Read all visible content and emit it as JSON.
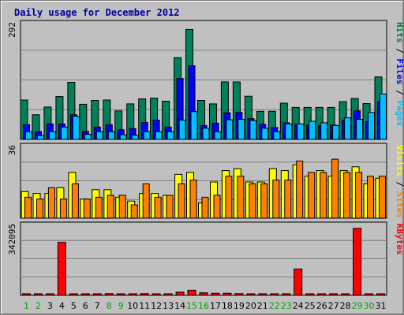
{
  "chart_data": {
    "type": "bar",
    "title": "Daily usage for December 2012",
    "days": [
      "1",
      "2",
      "3",
      "4",
      "5",
      "6",
      "7",
      "8",
      "9",
      "10",
      "11",
      "12",
      "13",
      "14",
      "15",
      "16",
      "17",
      "18",
      "19",
      "20",
      "21",
      "22",
      "23",
      "24",
      "25",
      "26",
      "27",
      "28",
      "29",
      "30",
      "31"
    ],
    "weekend_days": [
      1,
      2,
      8,
      9,
      15,
      16,
      22,
      23,
      29,
      30
    ],
    "panels": [
      {
        "id": "hits",
        "max_label": "292",
        "max": 292,
        "axis_labels": [
          {
            "text": "Pages",
            "color": "#00c0ff"
          },
          {
            "text": "Files",
            "color": "#0000ff"
          },
          {
            "text": "Hits",
            "color": "#008040"
          }
        ],
        "series": [
          {
            "name": "Hits",
            "color": "#00805a",
            "offset": -3,
            "values": [
              102,
              64,
              84,
              111,
              148,
              91,
              101,
              102,
              74,
              92,
              105,
              107,
              99,
              212,
              285,
              101,
              92,
              149,
              149,
              112,
              73,
              73,
              94,
              83,
              83,
              83,
              83,
              98,
              106,
              93,
              162
            ]
          },
          {
            "name": "Files",
            "color": "#0000ff",
            "offset": 0,
            "values": [
              38,
              20,
              40,
              40,
              64,
              21,
              32,
              38,
              25,
              28,
              44,
              50,
              32,
              158,
              191,
              36,
              42,
              69,
              70,
              54,
              39,
              31,
              43,
              40,
              37,
              35,
              37,
              50,
              74,
              46,
              98
            ]
          },
          {
            "name": "Pages",
            "color": "#00c0ff",
            "offset": 3,
            "values": [
              20,
              10,
              20,
              32,
              60,
              13,
              20,
              20,
              12,
              11,
              20,
              20,
              20,
              50,
              72,
              29,
              20,
              51,
              52,
              49,
              29,
              20,
              40,
              40,
              47,
              43,
              36,
              56,
              52,
              70,
              118
            ]
          }
        ]
      },
      {
        "id": "visits",
        "max_label": "36",
        "max": 36,
        "axis_labels": [
          {
            "text": "Sites",
            "color": "#ff8000"
          },
          {
            "text": "Visits",
            "color": "#ffff00"
          }
        ],
        "series": [
          {
            "name": "Visits",
            "color": "#ffff00",
            "offset": -2,
            "values": [
              14,
              13,
              13,
              16,
              24,
              10,
              15,
              15,
              11,
              9,
              13,
              13,
              12,
              23,
              24,
              8,
              19,
              25,
              26,
              19,
              19,
              26,
              25,
              28,
              22,
              25,
              22,
              25,
              27,
              18,
              21
            ]
          },
          {
            "name": "Sites",
            "color": "#ff8000",
            "offset": 2,
            "values": [
              11,
              10,
              16,
              10,
              18,
              10,
              11,
              12,
              12,
              7,
              18,
              11,
              12,
              18,
              20,
              11,
              12,
              22,
              22,
              18,
              18,
              20,
              20,
              30,
              24,
              24,
              31,
              24,
              24,
              22,
              22
            ]
          }
        ]
      },
      {
        "id": "kbytes",
        "max_label": "342095",
        "max": 342095,
        "axis_labels": [
          {
            "text": "KBytes",
            "color": "#ff0000"
          }
        ],
        "series": [
          {
            "name": "KBytes",
            "color": "#ff0000",
            "offset": 0,
            "values": [
              6000,
              6000,
              6000,
              271000,
              6000,
              6000,
              6000,
              9000,
              6000,
              6000,
              9000,
              6000,
              6000,
              16000,
              26000,
              13000,
              11000,
              11000,
              9000,
              8000,
              8000,
              8000,
              8000,
              134000,
              8000,
              8000,
              8000,
              6000,
              342095,
              6000,
              6000
            ]
          }
        ]
      }
    ]
  }
}
